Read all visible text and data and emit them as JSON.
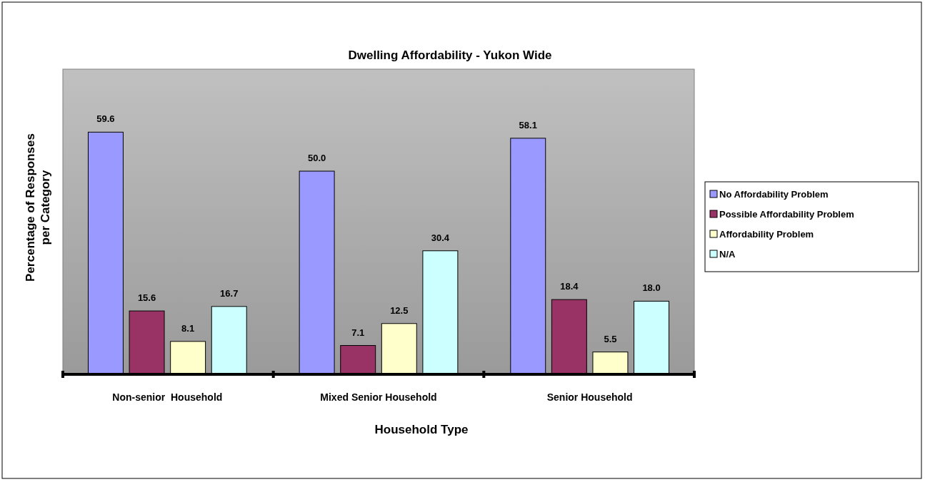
{
  "chart_data": {
    "type": "bar",
    "title": "Dwelling Affordability - Yukon Wide",
    "xlabel": "Household Type",
    "ylabel": "Percentage of Responses per Category",
    "categories": [
      "Non-senior  Household",
      "Mixed Senior Household",
      "Senior Household"
    ],
    "series": [
      {
        "name": "No Affordability Problem",
        "color": "#9999ff",
        "values": [
          59.6,
          50.0,
          58.1
        ],
        "value_labels": [
          "59.6",
          "50.0",
          "58.1"
        ]
      },
      {
        "name": "Possible Affordability Problem",
        "color": "#993366",
        "values": [
          15.6,
          7.1,
          18.4
        ],
        "value_labels": [
          "15.6",
          "7.1",
          "18.4"
        ]
      },
      {
        "name": "Affordability Problem",
        "color": "#ffffcc",
        "values": [
          8.1,
          12.5,
          5.5
        ],
        "value_labels": [
          "8.1",
          "12.5",
          "5.5"
        ]
      },
      {
        "name": "N/A",
        "color": "#ccffff",
        "values": [
          16.7,
          30.4,
          18.0
        ],
        "value_labels": [
          "16.7",
          "30.4",
          "18.0"
        ]
      }
    ],
    "legend": "right"
  }
}
